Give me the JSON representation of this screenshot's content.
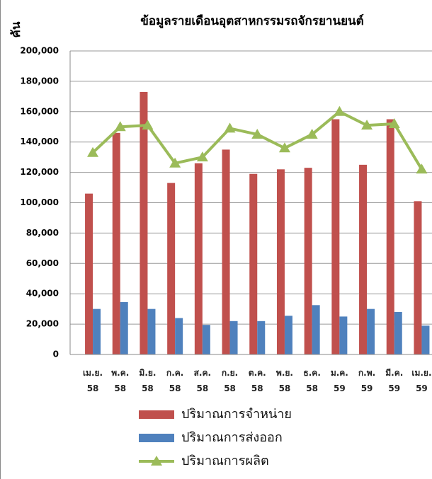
{
  "chart_data": {
    "type": "bar_line",
    "title": "ข้อมูลรายเดือนอุตสาหกรรมรถจักรยานยนต์",
    "y_label": "คัน",
    "categories": [
      "เม.ย. 58",
      "พ.ค. 58",
      "มิ.ย. 58",
      "ก.ค. 58",
      "ส.ค. 58",
      "ก.ย. 58",
      "ต.ค. 58",
      "พ.ย. 58",
      "ธ.ค. 58",
      "ม.ค. 59",
      "ก.พ. 59",
      "มี.ค. 59",
      "เม.ย. 59"
    ],
    "series": [
      {
        "name": "ปริมาณการจำหน่าย",
        "color": "#c0504d",
        "kind": "bar",
        "values": [
          106000,
          146000,
          173000,
          113000,
          126000,
          135000,
          119000,
          122000,
          123000,
          155000,
          125000,
          155000,
          101000
        ]
      },
      {
        "name": "ปริมาณการส่งออก",
        "color": "#4f81bd",
        "kind": "bar",
        "values": [
          30000,
          34500,
          30000,
          24000,
          19500,
          22000,
          22000,
          25500,
          32500,
          25000,
          30000,
          28000,
          19000
        ]
      },
      {
        "name": "ปริมาณการผลิต",
        "color": "#9bbb59",
        "kind": "line",
        "values": [
          133000,
          150000,
          151000,
          126000,
          130000,
          149000,
          145000,
          136000,
          145000,
          160000,
          151000,
          152000,
          122000
        ]
      }
    ],
    "ylim": [
      0,
      200000
    ],
    "yticks": [
      0,
      {
        "value": 20000,
        "label": "20,000"
      },
      {
        "value": 40000,
        "label": "40,000"
      },
      {
        "value": 60000,
        "label": "60,000"
      },
      {
        "value": 80000,
        "label": "80,000"
      },
      {
        "value": 100000,
        "label": "100,000"
      },
      {
        "value": 120000,
        "label": "120,000"
      },
      {
        "value": 140000,
        "label": "140,000"
      },
      {
        "value": 160000,
        "label": "160,000"
      },
      {
        "value": 180000,
        "label": "180,000"
      },
      {
        "value": 200000,
        "label": "200,000"
      }
    ],
    "grid": true
  }
}
